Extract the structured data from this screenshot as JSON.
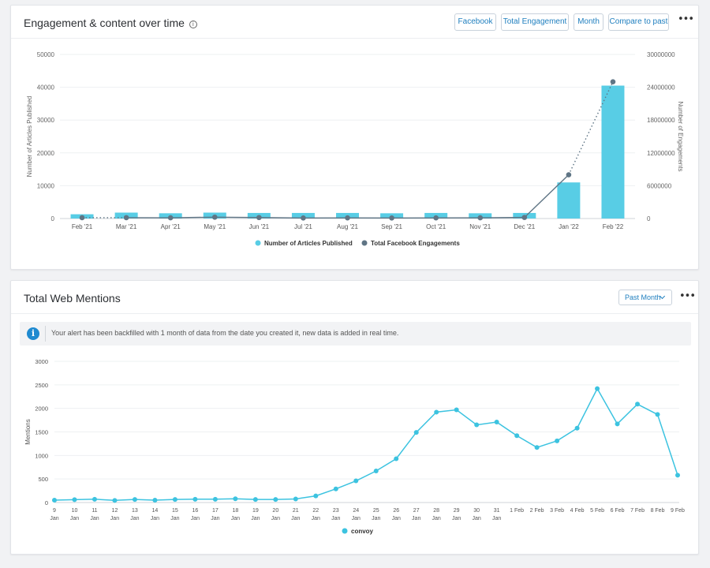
{
  "widget1": {
    "title": "Engagement & content over time",
    "info_icon": "i",
    "buttons": [
      "Facebook",
      "Total Engagement",
      "Month",
      "Compare to past"
    ],
    "more": "•••"
  },
  "widget2": {
    "title": "Total Web Mentions",
    "dropdown_label": "Past Month",
    "more": "•••",
    "banner_icon": "i",
    "banner_text": "Your alert has been backfilled with 1 month of data from the date you created it, new data is added in real time."
  },
  "colors": {
    "bar": "#58cde5",
    "line": "#5f7585",
    "mentions": "#3cc3e0",
    "accent": "#1f7fbf"
  },
  "chart_data": [
    {
      "type": "bar",
      "categories": [
        "Feb '21",
        "Mar '21",
        "Apr '21",
        "May '21",
        "Jun '21",
        "Jul '21",
        "Aug '21",
        "Sep '21",
        "Oct '21",
        "Nov '21",
        "Dec '21",
        "Jan '22",
        "Feb '22"
      ],
      "series": [
        {
          "name": "Number of Articles Published",
          "type": "bar",
          "axis": "left",
          "values": [
            1300,
            1800,
            1600,
            1800,
            1700,
            1700,
            1700,
            1600,
            1700,
            1600,
            1700,
            11000,
            40500
          ]
        },
        {
          "name": "Total Facebook Engagements",
          "type": "line",
          "axis": "right",
          "values": [
            150000,
            160000,
            140000,
            250000,
            180000,
            100000,
            120000,
            100000,
            120000,
            130000,
            200000,
            8000000,
            25000000
          ]
        }
      ],
      "ylabel": "Number of Articles Published",
      "ylabel_right": "Number of Engagements",
      "ylim": [
        0,
        50000
      ],
      "y_ticks": [
        "0",
        "10000",
        "20000",
        "30000",
        "40000",
        "50000"
      ],
      "ylim_right": [
        0,
        30000000
      ],
      "y_ticks_right": [
        "0",
        "6000000",
        "12000000",
        "18000000",
        "24000000",
        "30000000"
      ],
      "legend": "bottom",
      "grid": true
    },
    {
      "type": "line",
      "x": [
        "9 Jan",
        "10 Jan",
        "11 Jan",
        "12 Jan",
        "13 Jan",
        "14 Jan",
        "15 Jan",
        "16 Jan",
        "17 Jan",
        "18 Jan",
        "19 Jan",
        "20 Jan",
        "21 Jan",
        "22 Jan",
        "23 Jan",
        "24 Jan",
        "25 Jan",
        "26 Jan",
        "27 Jan",
        "28 Jan",
        "29 Jan",
        "30 Jan",
        "31 Jan",
        "1 Feb",
        "2 Feb",
        "3 Feb",
        "4 Feb",
        "5 Feb",
        "6 Feb",
        "7 Feb",
        "8 Feb",
        "9 Feb"
      ],
      "series": [
        {
          "name": "convoy",
          "values": [
            50,
            60,
            70,
            45,
            65,
            50,
            65,
            70,
            70,
            80,
            65,
            65,
            75,
            140,
            290,
            460,
            670,
            930,
            1490,
            1920,
            1970,
            1650,
            1710,
            1420,
            1170,
            1310,
            1580,
            2420,
            1670,
            2090,
            1870,
            580
          ]
        }
      ],
      "ylabel": "Mentions",
      "ylim": [
        0,
        3000
      ],
      "y_ticks": [
        "0",
        "500",
        "1000",
        "1500",
        "2000",
        "2500",
        "3000"
      ],
      "legend": "bottom",
      "grid": true
    }
  ]
}
